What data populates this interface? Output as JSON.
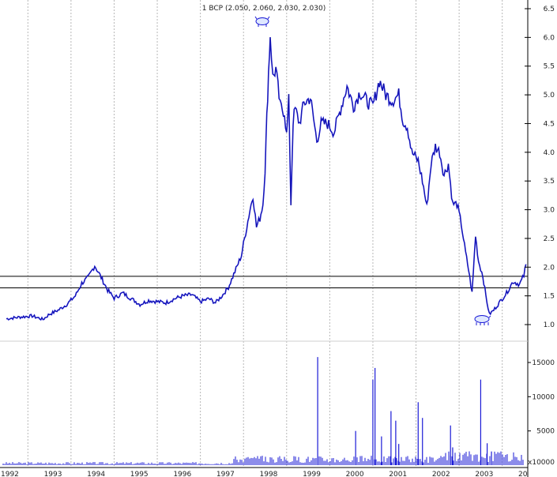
{
  "title": "1 BCP (2.050, 2.060, 2.030, 2.030)",
  "colors": {
    "price": "#1a1ad6",
    "price_dark": "#000000",
    "volume": "#1a1ad6",
    "grid": "#b8b8b8",
    "hline": "#000000",
    "axis_text": "#222222"
  },
  "icons": {
    "top_marker": "bull-icon",
    "bottom_marker": "bear-icon"
  },
  "chart_data": [
    {
      "type": "line",
      "title": "1 BCP (2.050, 2.060, 2.030, 2.030)",
      "xlabel": "",
      "ylabel": "",
      "x_tick_labels": [
        "1992",
        "1993",
        "1994",
        "1995",
        "1996",
        "1997",
        "1998",
        "1999",
        "2000",
        "2001",
        "2002",
        "2003",
        "20"
      ],
      "y_tick_labels": [
        "1.0",
        "1.5",
        "2.0",
        "2.5",
        "3.0",
        "3.5",
        "4.0",
        "4.5",
        "5.0",
        "5.5",
        "6.0",
        "6.5"
      ],
      "xlim": [
        1992.0,
        2004.05
      ],
      "ylim": [
        0.75,
        6.62
      ],
      "grid": true,
      "horizontal_lines": [
        1.84,
        1.64
      ],
      "series": [
        {
          "x": [
            1992.0,
            1992.3,
            1992.6,
            1992.85,
            1993.0,
            1993.2,
            1993.4,
            1993.6,
            1993.75,
            1993.9,
            1994.05,
            1994.2,
            1994.35,
            1994.5,
            1994.7,
            1994.9,
            1995.1,
            1995.3,
            1995.5,
            1995.7,
            1995.9,
            1996.1,
            1996.3,
            1996.5,
            1996.7,
            1996.85,
            1997.0,
            1997.15,
            1997.3,
            1997.45,
            1997.55,
            1997.65,
            1997.72,
            1997.8,
            1997.88,
            1997.95,
            1998.0,
            1998.04,
            1998.08,
            1998.12,
            1998.18,
            1998.25,
            1998.35,
            1998.45,
            1998.5,
            1998.55,
            1998.6,
            1998.65,
            1998.7,
            1998.8,
            1998.9,
            1999.05,
            1999.2,
            1999.3,
            1999.45,
            1999.6,
            1999.75,
            1999.9,
            2000.05,
            2000.2,
            2000.35,
            2000.5,
            2000.65,
            2000.8,
            2000.95,
            2001.1,
            2001.2,
            2001.3,
            2001.4,
            2001.55,
            2001.65,
            2001.75,
            2001.85,
            2001.95,
            2002.05,
            2002.15,
            2002.25,
            2002.35,
            2002.45,
            2002.55,
            2002.65,
            2002.72,
            2002.8,
            2002.88,
            2002.95,
            2003.05,
            2003.12,
            2003.2,
            2003.3,
            2003.45,
            2003.6,
            2003.75,
            2003.9,
            2004.0,
            2004.05
          ],
          "y": [
            1.1,
            1.13,
            1.15,
            1.09,
            1.18,
            1.25,
            1.35,
            1.5,
            1.72,
            1.82,
            2.03,
            1.82,
            1.6,
            1.46,
            1.55,
            1.45,
            1.35,
            1.42,
            1.4,
            1.38,
            1.45,
            1.5,
            1.52,
            1.4,
            1.45,
            1.38,
            1.5,
            1.65,
            1.92,
            2.2,
            2.6,
            3.0,
            3.25,
            2.7,
            2.85,
            3.1,
            3.7,
            4.6,
            5.4,
            6.05,
            5.3,
            5.45,
            4.8,
            4.7,
            4.3,
            4.9,
            3.1,
            4.55,
            4.75,
            4.5,
            4.85,
            4.95,
            4.2,
            4.5,
            4.5,
            4.35,
            4.75,
            5.15,
            4.8,
            5.05,
            4.9,
            4.8,
            5.25,
            5.0,
            4.9,
            5.0,
            4.55,
            4.45,
            4.0,
            3.85,
            3.5,
            3.05,
            3.8,
            4.1,
            4.0,
            3.6,
            3.8,
            3.1,
            3.1,
            2.75,
            2.25,
            1.95,
            1.55,
            2.55,
            2.1,
            1.85,
            1.5,
            1.18,
            1.25,
            1.4,
            1.55,
            1.75,
            1.7,
            1.85,
            2.05
          ]
        }
      ]
    },
    {
      "type": "bar",
      "title": "",
      "xlabel": "",
      "ylabel": "",
      "y_tick_labels": [
        "5000",
        "10000",
        "15000"
      ],
      "unit_label": "x10000",
      "ylim": [
        0,
        17800
      ],
      "spikes": {
        "x": [
          1999.22,
          2000.1,
          2000.5,
          2000.55,
          2000.7,
          2000.92,
          2001.03,
          2001.1,
          2001.55,
          2001.65,
          2002.3,
          2002.35,
          2003.0,
          2003.15,
          2003.25
        ],
        "values": [
          15800,
          5000,
          12500,
          14200,
          4200,
          7900,
          6500,
          3100,
          9200,
          6900,
          5800,
          2600,
          12500,
          3200,
          2000
        ]
      }
    }
  ]
}
